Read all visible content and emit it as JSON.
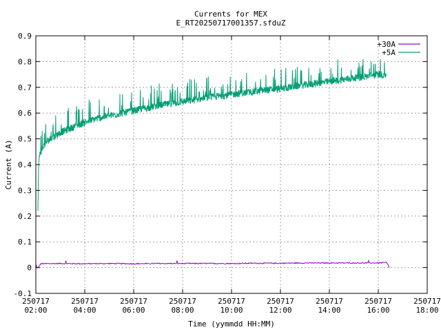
{
  "chart_data": {
    "type": "line",
    "title": "Currents for MEX",
    "subtitle": "E_RT2025071700135​7.sfduZ",
    "xlabel": "Time (yymmdd HH:MM)",
    "ylabel": "Current (A)",
    "xlim": [
      "250717 02:00",
      "250717 18:00"
    ],
    "ylim": [
      -0.1,
      0.9
    ],
    "grid": true,
    "legend_position": "top-right",
    "x_ticks": [
      {
        "date": "250717",
        "time": "02:00"
      },
      {
        "date": "250717",
        "time": "04:00"
      },
      {
        "date": "250717",
        "time": "06:00"
      },
      {
        "date": "250717",
        "time": "08:00"
      },
      {
        "date": "250717",
        "time": "10:00"
      },
      {
        "date": "250717",
        "time": "12:00"
      },
      {
        "date": "250717",
        "time": "14:00"
      },
      {
        "date": "250717",
        "time": "16:00"
      },
      {
        "date": "250717",
        "time": "18:00"
      }
    ],
    "y_ticks": [
      "-0.1",
      "0",
      "0.1",
      "0.2",
      "0.3",
      "0.4",
      "0.5",
      "0.6",
      "0.7",
      "0.8",
      "0.9"
    ],
    "series": [
      {
        "name": "+30A",
        "color": "#9400d3",
        "x": [
          "02:00",
          "02:06",
          "02:12",
          "03:00",
          "04:00",
          "05:00",
          "06:00",
          "07:00",
          "08:00",
          "09:00",
          "10:00",
          "11:00",
          "12:00",
          "13:00",
          "14:00",
          "15:00",
          "16:00",
          "16:20",
          "16:24",
          "16:27"
        ],
        "y": [
          0.0,
          0.0,
          0.015,
          0.016,
          0.015,
          0.016,
          0.015,
          0.016,
          0.016,
          0.016,
          0.016,
          0.017,
          0.017,
          0.018,
          0.018,
          0.018,
          0.018,
          0.02,
          0.01,
          0.0
        ]
      },
      {
        "name": "+5A",
        "color": "#009e73",
        "x": [
          "02:05",
          "02:07",
          "02:10",
          "02:20",
          "02:30",
          "03:00",
          "03:30",
          "04:00",
          "04:30",
          "05:00",
          "05:30",
          "06:00",
          "06:30",
          "07:00",
          "07:30",
          "08:00",
          "08:30",
          "09:00",
          "09:30",
          "10:00",
          "10:30",
          "11:00",
          "11:30",
          "12:00",
          "12:30",
          "13:00",
          "13:30",
          "14:00",
          "14:30",
          "15:00",
          "15:30",
          "16:00",
          "16:20"
        ],
        "y": [
          0.23,
          0.4,
          0.44,
          0.47,
          0.49,
          0.52,
          0.54,
          0.56,
          0.575,
          0.585,
          0.595,
          0.605,
          0.615,
          0.625,
          0.632,
          0.64,
          0.647,
          0.655,
          0.662,
          0.668,
          0.674,
          0.68,
          0.686,
          0.69,
          0.698,
          0.705,
          0.712,
          0.718,
          0.725,
          0.732,
          0.738,
          0.745,
          0.745
        ]
      }
    ]
  }
}
